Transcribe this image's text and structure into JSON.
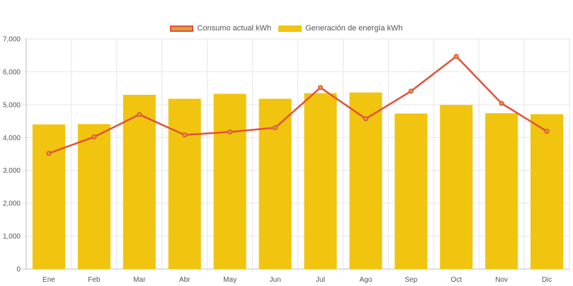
{
  "chart_data": {
    "type": "bar",
    "categories": [
      "Ene",
      "Feb",
      "Mar",
      "Abr",
      "May",
      "Jun",
      "Jul",
      "Ago",
      "Sep",
      "Oct",
      "Nov",
      "Dic"
    ],
    "series": [
      {
        "name": "Consumo actual kWh",
        "type": "line",
        "color": "#e0523a",
        "values": [
          3520,
          4020,
          4700,
          4080,
          4170,
          4300,
          5520,
          4570,
          5410,
          6470,
          5040,
          4190
        ]
      },
      {
        "name": "Generación de energía kWh",
        "type": "bar",
        "color": "#f0c40f",
        "values": [
          4400,
          4410,
          5300,
          5180,
          5330,
          5180,
          5350,
          5370,
          4730,
          4990,
          4740,
          4710
        ]
      }
    ],
    "ylim": [
      0,
      7000
    ],
    "yticks": [
      "0",
      "1,000",
      "2,000",
      "3,000",
      "4,000",
      "5,000",
      "6,000",
      "7,000"
    ],
    "grid": true,
    "legend_position": "top-center"
  }
}
